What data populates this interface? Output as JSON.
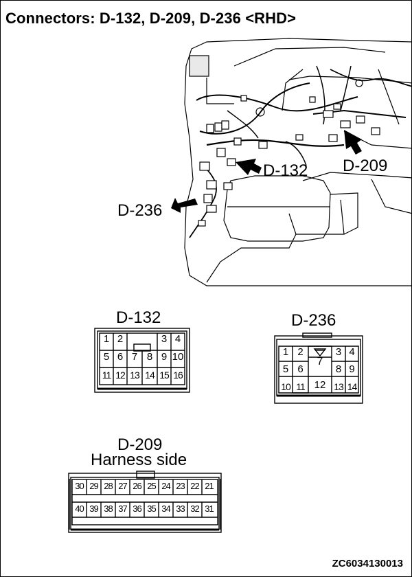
{
  "title": "Connectors: D-132, D-209, D-236 <RHD>",
  "image_code": "ZC6034130013",
  "callouts": {
    "d132": "D-132",
    "d209": "D-209",
    "d236": "D-236"
  },
  "connectors": {
    "d132": {
      "label": "D-132",
      "row1": [
        "1",
        "2",
        "",
        "",
        "3",
        "4"
      ],
      "row2": [
        "5",
        "6",
        "7",
        "8",
        "9",
        "10"
      ],
      "row3": [
        "11",
        "12",
        "13",
        "14",
        "15",
        "16"
      ]
    },
    "d236": {
      "label": "D-236",
      "row1": [
        "1",
        "2",
        "7",
        "3",
        "4"
      ],
      "row2": [
        "5",
        "6",
        "8",
        "9"
      ],
      "row3": [
        "10",
        "11",
        "12",
        "13",
        "14"
      ]
    },
    "d209": {
      "label": "D-209",
      "sublabel": "Harness side",
      "row1": [
        "30",
        "29",
        "28",
        "27",
        "26",
        "25",
        "24",
        "23",
        "22",
        "21"
      ],
      "row2": [
        "40",
        "39",
        "38",
        "37",
        "36",
        "35",
        "34",
        "33",
        "32",
        "31"
      ]
    }
  }
}
